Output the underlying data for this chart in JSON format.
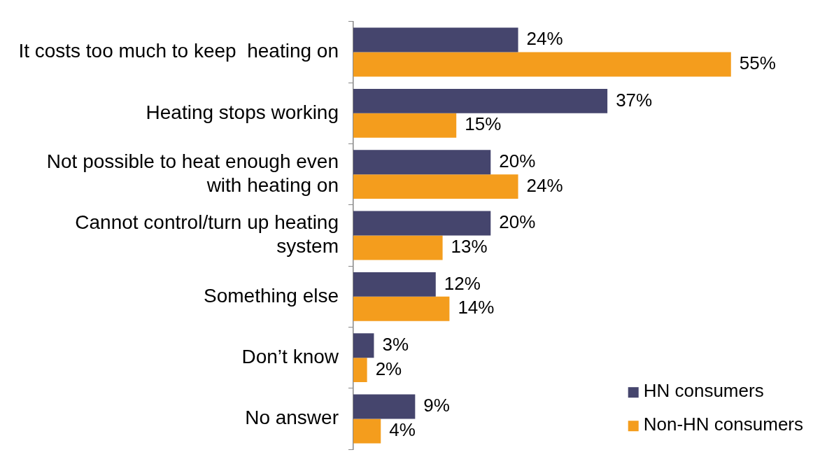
{
  "chart_data": {
    "type": "bar",
    "orientation": "horizontal",
    "legend": "bottom right",
    "grid": false,
    "categories": [
      "It costs too much to keep  heating on",
      "Heating stops working",
      "Not possible to heat enough even with heating on",
      "Cannot control/turn up heating system",
      "Something else",
      "Don’t know",
      "No answer"
    ],
    "series": [
      {
        "name": "HN consumers",
        "color": "#45456d",
        "values": [
          24,
          37,
          20,
          20,
          12,
          3,
          9
        ],
        "value_labels": [
          "24%",
          "37%",
          "20%",
          "20%",
          "12%",
          "3%",
          "9%"
        ]
      },
      {
        "name": "Non-HN consumers",
        "color": "#f49d1d",
        "values": [
          55,
          15,
          24,
          13,
          14,
          2,
          4
        ],
        "value_labels": [
          "55%",
          "15%",
          "24%",
          "13%",
          "14%",
          "2%",
          "4%"
        ]
      }
    ]
  }
}
